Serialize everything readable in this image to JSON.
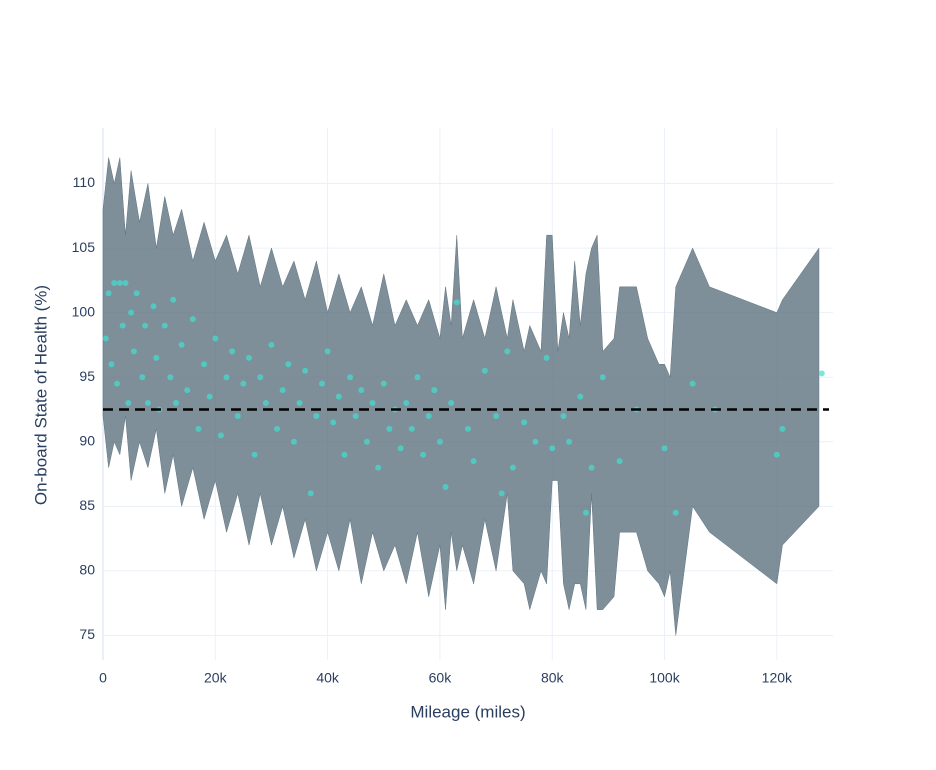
{
  "chart_data": {
    "type": "scatter",
    "xlabel": "Mileage (miles)",
    "ylabel": "On-board State of Health (%)",
    "xlim": [
      0,
      130000
    ],
    "ylim": [
      73.1,
      114.3
    ],
    "xticks": [
      0,
      {
        "value": 20000,
        "label": "20k"
      },
      {
        "value": 40000,
        "label": "40k"
      },
      {
        "value": 60000,
        "label": "60k"
      },
      {
        "value": 80000,
        "label": "80k"
      },
      {
        "value": 100000,
        "label": "100k"
      },
      {
        "value": 120000,
        "label": "120k"
      }
    ],
    "yticks": [
      75,
      80,
      85,
      90,
      95,
      100,
      105,
      110
    ],
    "grid": true,
    "band": {
      "color": "#5e7380",
      "x": [
        0,
        1000,
        2000,
        3000,
        4000,
        5000,
        6500,
        8000,
        9500,
        11000,
        12500,
        14000,
        16000,
        18000,
        20000,
        22000,
        24000,
        26000,
        28000,
        30000,
        32000,
        34000,
        36000,
        38000,
        40000,
        42000,
        44000,
        46000,
        48000,
        50000,
        52000,
        54000,
        56000,
        58000,
        60000,
        61000,
        62000,
        63000,
        64000,
        66000,
        68000,
        70000,
        72000,
        73000,
        75000,
        76000,
        78000,
        79000,
        80000,
        81000,
        82000,
        83000,
        84000,
        85000,
        86000,
        87000,
        88000,
        89000,
        91000,
        92000,
        95000,
        97000,
        99000,
        100000,
        101000,
        102000,
        105000,
        108000,
        120000,
        121000,
        127500
      ],
      "upper": [
        108,
        112,
        110,
        112,
        106,
        111,
        107,
        110,
        105,
        109,
        106,
        108,
        104,
        107,
        104,
        106,
        103,
        106,
        102,
        105,
        102,
        104,
        101,
        104,
        100,
        103,
        100,
        102,
        99,
        103,
        99,
        101,
        99,
        101,
        98,
        102,
        99,
        106,
        98,
        101,
        98,
        102,
        98,
        101,
        97,
        99,
        97,
        106,
        106,
        97,
        100,
        98,
        104,
        99,
        103,
        105,
        106,
        97,
        98,
        102,
        102,
        98,
        96,
        96,
        95,
        102,
        105,
        102,
        100,
        101,
        105
      ],
      "lower": [
        92,
        88,
        90,
        89,
        92,
        87,
        90,
        88,
        91,
        86,
        89,
        85,
        88,
        84,
        87,
        83,
        86,
        82,
        86,
        82,
        85,
        81,
        84,
        80,
        83,
        80,
        84,
        79,
        83,
        80,
        82,
        79,
        83,
        78,
        82,
        77,
        83,
        80,
        82,
        79,
        84,
        80,
        86,
        80,
        79,
        77,
        80,
        79,
        87,
        87,
        79,
        77,
        79,
        79,
        77,
        86,
        77,
        77,
        78,
        83,
        83,
        80,
        79,
        78,
        80,
        75,
        85,
        83,
        79,
        82,
        85
      ]
    },
    "series": [
      {
        "color": "#40e0d0",
        "x": [
          500,
          1000,
          1500,
          2000,
          2500,
          3000,
          3500,
          4000,
          4500,
          5000,
          5500,
          6000,
          7000,
          7500,
          8000,
          9000,
          9500,
          10000,
          11000,
          12000,
          12500,
          13000,
          14000,
          15000,
          16000,
          17000,
          18000,
          19000,
          20000,
          21000,
          22000,
          23000,
          24000,
          25000,
          26000,
          27000,
          28000,
          29000,
          30000,
          31000,
          32000,
          33000,
          34000,
          35000,
          36000,
          37000,
          38000,
          39000,
          40000,
          41000,
          42000,
          43000,
          44000,
          45000,
          46000,
          47000,
          48000,
          49000,
          50000,
          51000,
          52000,
          53000,
          54000,
          55000,
          56000,
          57000,
          58000,
          59000,
          60000,
          61000,
          62000,
          63000,
          65000,
          66000,
          68000,
          70000,
          71000,
          72000,
          73000,
          75000,
          77000,
          79000,
          80000,
          82000,
          83000,
          85000,
          86000,
          87000,
          89000,
          92000,
          95000,
          100000,
          102000,
          105000,
          109000,
          120000,
          121000,
          128000
        ],
        "y": [
          98,
          101.5,
          96,
          102.3,
          94.5,
          102.3,
          99,
          102.3,
          93,
          100,
          97,
          101.5,
          95,
          99,
          93,
          100.5,
          96.5,
          92.5,
          99,
          95,
          101,
          93,
          97.5,
          94,
          99.5,
          91,
          96,
          93.5,
          98,
          90.5,
          95,
          97,
          92,
          94.5,
          96.5,
          89,
          95,
          93,
          97.5,
          91,
          94,
          96,
          90,
          93,
          95.5,
          86,
          92,
          94.5,
          97,
          91.5,
          93.5,
          89,
          95,
          92,
          94,
          90,
          93,
          88,
          94.5,
          91,
          92.5,
          89.5,
          93,
          91,
          95,
          89,
          92,
          94,
          90,
          86.5,
          93,
          100.8,
          91,
          88.5,
          95.5,
          92,
          86,
          97,
          88,
          91.5,
          90,
          96.5,
          89.5,
          92,
          90,
          93.5,
          84.5,
          88,
          95,
          88.5,
          92.5,
          89.5,
          84.5,
          94.5,
          92.5,
          89,
          91,
          95.3
        ]
      }
    ],
    "hline": {
      "value": 92.5,
      "color": "#000000"
    }
  }
}
